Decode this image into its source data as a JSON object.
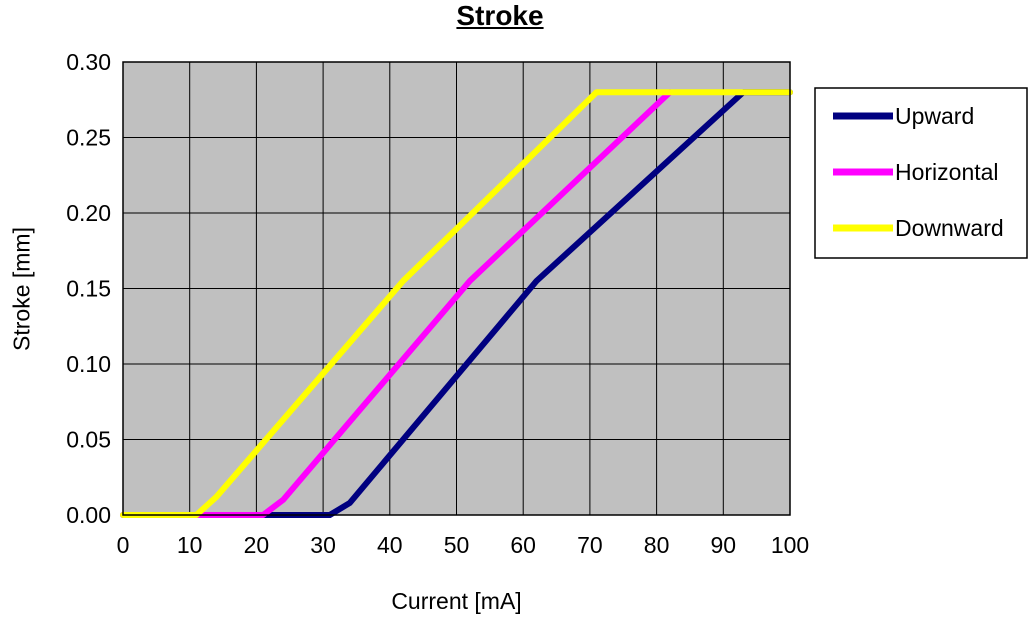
{
  "chart_data": {
    "type": "line",
    "title": "Stroke",
    "xlabel": "Current [mA]",
    "ylabel": "Stroke [mm]",
    "xlim": [
      0,
      100
    ],
    "ylim": [
      0,
      0.3
    ],
    "x_ticks": [
      0,
      10,
      20,
      30,
      40,
      50,
      60,
      70,
      80,
      90,
      100
    ],
    "x_tick_labels": [
      "0",
      "10",
      "20",
      "30",
      "40",
      "50",
      "60",
      "70",
      "80",
      "90",
      "100"
    ],
    "y_ticks": [
      0.0,
      0.05,
      0.1,
      0.15,
      0.2,
      0.25,
      0.3
    ],
    "y_tick_labels": [
      "0.00",
      "0.05",
      "0.10",
      "0.15",
      "0.20",
      "0.25",
      "0.30"
    ],
    "grid": true,
    "plot_background_color": "#c0c0c0",
    "grid_color": "#000000",
    "legend_position": "right",
    "legend_background_color": "#ffffff",
    "series": [
      {
        "name": "Upward",
        "color": "#000080",
        "points": [
          [
            0,
            0
          ],
          [
            31,
            0
          ],
          [
            34,
            0.008
          ],
          [
            62,
            0.155
          ],
          [
            93,
            0.28
          ],
          [
            100,
            0.28
          ]
        ]
      },
      {
        "name": "Horizontal",
        "color": "#ff00ff",
        "points": [
          [
            0,
            0
          ],
          [
            21,
            0
          ],
          [
            24,
            0.01
          ],
          [
            52,
            0.155
          ],
          [
            82,
            0.28
          ]
        ]
      },
      {
        "name": "Downward",
        "color": "#ffff00",
        "points": [
          [
            0,
            0
          ],
          [
            11,
            0
          ],
          [
            14,
            0.012
          ],
          [
            42,
            0.155
          ],
          [
            71,
            0.28
          ],
          [
            100,
            0.28
          ]
        ]
      }
    ]
  }
}
